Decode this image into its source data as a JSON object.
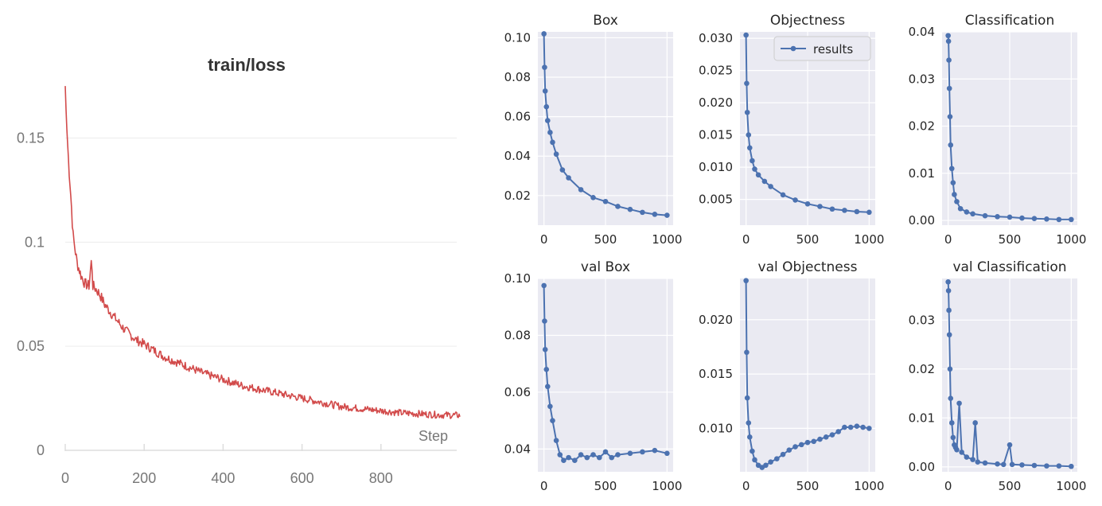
{
  "chart_data": [
    {
      "type": "line",
      "title": "train/loss",
      "xlabel": "Step",
      "ylabel": "",
      "xlim": [
        0,
        1000
      ],
      "ylim": [
        0,
        0.18
      ],
      "x_ticks": [
        0,
        200,
        400,
        600,
        800
      ],
      "x_tick_labels": [
        "0",
        "200",
        "400",
        "600",
        "800"
      ],
      "y_ticks": [
        0,
        0.05,
        0.1,
        0.15
      ],
      "y_tick_labels": [
        "0",
        "0.05",
        "0.1",
        "0.15"
      ],
      "color": "#d24b4b",
      "series": [
        {
          "name": "train/loss",
          "x": [
            0,
            3,
            8,
            15,
            20,
            30,
            40,
            50,
            60,
            67,
            70,
            80,
            90,
            100,
            120,
            150,
            180,
            200,
            250,
            300,
            350,
            400,
            450,
            500,
            550,
            600,
            650,
            700,
            750,
            800,
            850,
            900,
            950,
            1000
          ],
          "y": [
            0.175,
            0.158,
            0.14,
            0.12,
            0.103,
            0.09,
            0.084,
            0.08,
            0.079,
            0.092,
            0.079,
            0.077,
            0.074,
            0.07,
            0.065,
            0.058,
            0.053,
            0.051,
            0.045,
            0.041,
            0.037,
            0.034,
            0.031,
            0.029,
            0.027,
            0.025,
            0.023,
            0.021,
            0.02,
            0.019,
            0.018,
            0.0175,
            0.017,
            0.0168
          ]
        }
      ]
    },
    {
      "type": "line",
      "title": "Box",
      "xlim": [
        0,
        1000
      ],
      "ylim": [
        0.005,
        0.103
      ],
      "x_ticks": [
        0,
        500,
        1000
      ],
      "x_tick_labels": [
        "0",
        "500",
        "1000"
      ],
      "y_ticks": [
        0.02,
        0.04,
        0.06,
        0.08,
        0.1
      ],
      "y_tick_labels": [
        "0.02",
        "0.04",
        "0.06",
        "0.08",
        "0.10"
      ],
      "legend": null,
      "series": [
        {
          "name": "results",
          "x": [
            0,
            5,
            10,
            20,
            30,
            50,
            70,
            100,
            150,
            200,
            300,
            400,
            500,
            600,
            700,
            800,
            900,
            1000
          ],
          "y": [
            0.102,
            0.085,
            0.073,
            0.065,
            0.058,
            0.052,
            0.047,
            0.041,
            0.033,
            0.029,
            0.023,
            0.019,
            0.017,
            0.0145,
            0.013,
            0.0115,
            0.0105,
            0.01
          ]
        }
      ]
    },
    {
      "type": "line",
      "title": "Objectness",
      "xlim": [
        0,
        1000
      ],
      "ylim": [
        0.001,
        0.031
      ],
      "x_ticks": [
        0,
        500,
        1000
      ],
      "x_tick_labels": [
        "0",
        "500",
        "1000"
      ],
      "y_ticks": [
        0.005,
        0.01,
        0.015,
        0.02,
        0.025,
        0.03
      ],
      "y_tick_labels": [
        "0.005",
        "0.010",
        "0.015",
        "0.020",
        "0.025",
        "0.030"
      ],
      "legend": {
        "label": "results",
        "position": "top-right"
      },
      "series": [
        {
          "name": "results",
          "x": [
            0,
            5,
            10,
            20,
            30,
            50,
            70,
            100,
            150,
            200,
            300,
            400,
            500,
            600,
            700,
            800,
            900,
            1000
          ],
          "y": [
            0.0305,
            0.023,
            0.0185,
            0.015,
            0.013,
            0.011,
            0.0097,
            0.0088,
            0.0078,
            0.007,
            0.0057,
            0.0049,
            0.0043,
            0.0039,
            0.0035,
            0.0033,
            0.0031,
            0.003
          ]
        }
      ]
    },
    {
      "type": "line",
      "title": "Classification",
      "xlim": [
        0,
        1000
      ],
      "ylim": [
        -0.001,
        0.04
      ],
      "x_ticks": [
        0,
        500,
        1000
      ],
      "x_tick_labels": [
        "0",
        "500",
        "1000"
      ],
      "y_ticks": [
        0,
        0.01,
        0.02,
        0.03,
        0.04
      ],
      "y_tick_labels": [
        "0.00",
        "0.01",
        "0.02",
        "0.03",
        "0.04"
      ],
      "legend": null,
      "series": [
        {
          "name": "results",
          "x": [
            0,
            3,
            6,
            10,
            15,
            20,
            30,
            40,
            50,
            70,
            100,
            150,
            200,
            300,
            400,
            500,
            600,
            700,
            800,
            900,
            1000
          ],
          "y": [
            0.0392,
            0.038,
            0.034,
            0.028,
            0.022,
            0.016,
            0.011,
            0.008,
            0.0055,
            0.004,
            0.0025,
            0.0018,
            0.0014,
            0.001,
            0.0008,
            0.0007,
            0.0005,
            0.0004,
            0.0003,
            0.0002,
            0.0002
          ]
        }
      ]
    },
    {
      "type": "line",
      "title": "val Box",
      "xlim": [
        0,
        1000
      ],
      "ylim": [
        0.032,
        0.1
      ],
      "x_ticks": [
        0,
        500,
        1000
      ],
      "x_tick_labels": [
        "0",
        "500",
        "1000"
      ],
      "y_ticks": [
        0.04,
        0.06,
        0.08,
        0.1
      ],
      "y_tick_labels": [
        "0.04",
        "0.06",
        "0.08",
        "0.10"
      ],
      "legend": null,
      "series": [
        {
          "name": "results",
          "x": [
            0,
            5,
            10,
            20,
            30,
            50,
            70,
            100,
            130,
            160,
            200,
            250,
            300,
            350,
            400,
            450,
            500,
            550,
            600,
            700,
            800,
            900,
            1000
          ],
          "y": [
            0.0975,
            0.085,
            0.075,
            0.068,
            0.062,
            0.055,
            0.05,
            0.043,
            0.038,
            0.036,
            0.037,
            0.036,
            0.038,
            0.037,
            0.038,
            0.037,
            0.039,
            0.037,
            0.038,
            0.0385,
            0.039,
            0.0395,
            0.0385
          ]
        }
      ]
    },
    {
      "type": "line",
      "title": "val Objectness",
      "xlim": [
        0,
        1000
      ],
      "ylim": [
        0.006,
        0.0238
      ],
      "x_ticks": [
        0,
        500,
        1000
      ],
      "x_tick_labels": [
        "0",
        "500",
        "1000"
      ],
      "y_ticks": [
        0.01,
        0.015,
        0.02
      ],
      "y_tick_labels": [
        "0.010",
        "0.015",
        "0.020"
      ],
      "legend": null,
      "series": [
        {
          "name": "results",
          "x": [
            0,
            5,
            10,
            20,
            30,
            50,
            70,
            100,
            130,
            160,
            200,
            250,
            300,
            350,
            400,
            450,
            500,
            550,
            600,
            650,
            700,
            750,
            800,
            850,
            900,
            950,
            1000
          ],
          "y": [
            0.0236,
            0.017,
            0.0128,
            0.0105,
            0.0092,
            0.0079,
            0.0071,
            0.0066,
            0.0064,
            0.0066,
            0.0069,
            0.0072,
            0.0076,
            0.008,
            0.0083,
            0.0085,
            0.0087,
            0.0088,
            0.009,
            0.0092,
            0.0094,
            0.0097,
            0.0101,
            0.0101,
            0.0102,
            0.0101,
            0.01
          ]
        }
      ]
    },
    {
      "type": "line",
      "title": "val Classification",
      "xlim": [
        0,
        1000
      ],
      "ylim": [
        -0.001,
        0.0385
      ],
      "x_ticks": [
        0,
        500,
        1000
      ],
      "x_tick_labels": [
        "0",
        "500",
        "1000"
      ],
      "y_ticks": [
        0,
        0.01,
        0.02,
        0.03
      ],
      "y_tick_labels": [
        "0.00",
        "0.01",
        "0.02",
        "0.03"
      ],
      "legend": null,
      "series": [
        {
          "name": "results",
          "x": [
            0,
            3,
            6,
            10,
            15,
            20,
            30,
            40,
            50,
            60,
            70,
            90,
            110,
            150,
            200,
            220,
            240,
            300,
            400,
            450,
            500,
            520,
            600,
            700,
            800,
            900,
            1000
          ],
          "y": [
            0.0378,
            0.036,
            0.032,
            0.027,
            0.02,
            0.014,
            0.009,
            0.006,
            0.0045,
            0.004,
            0.0035,
            0.013,
            0.003,
            0.002,
            0.0015,
            0.009,
            0.001,
            0.0008,
            0.0006,
            0.0005,
            0.0045,
            0.0005,
            0.0004,
            0.0003,
            0.0002,
            0.0002,
            0.0001
          ]
        }
      ]
    }
  ]
}
